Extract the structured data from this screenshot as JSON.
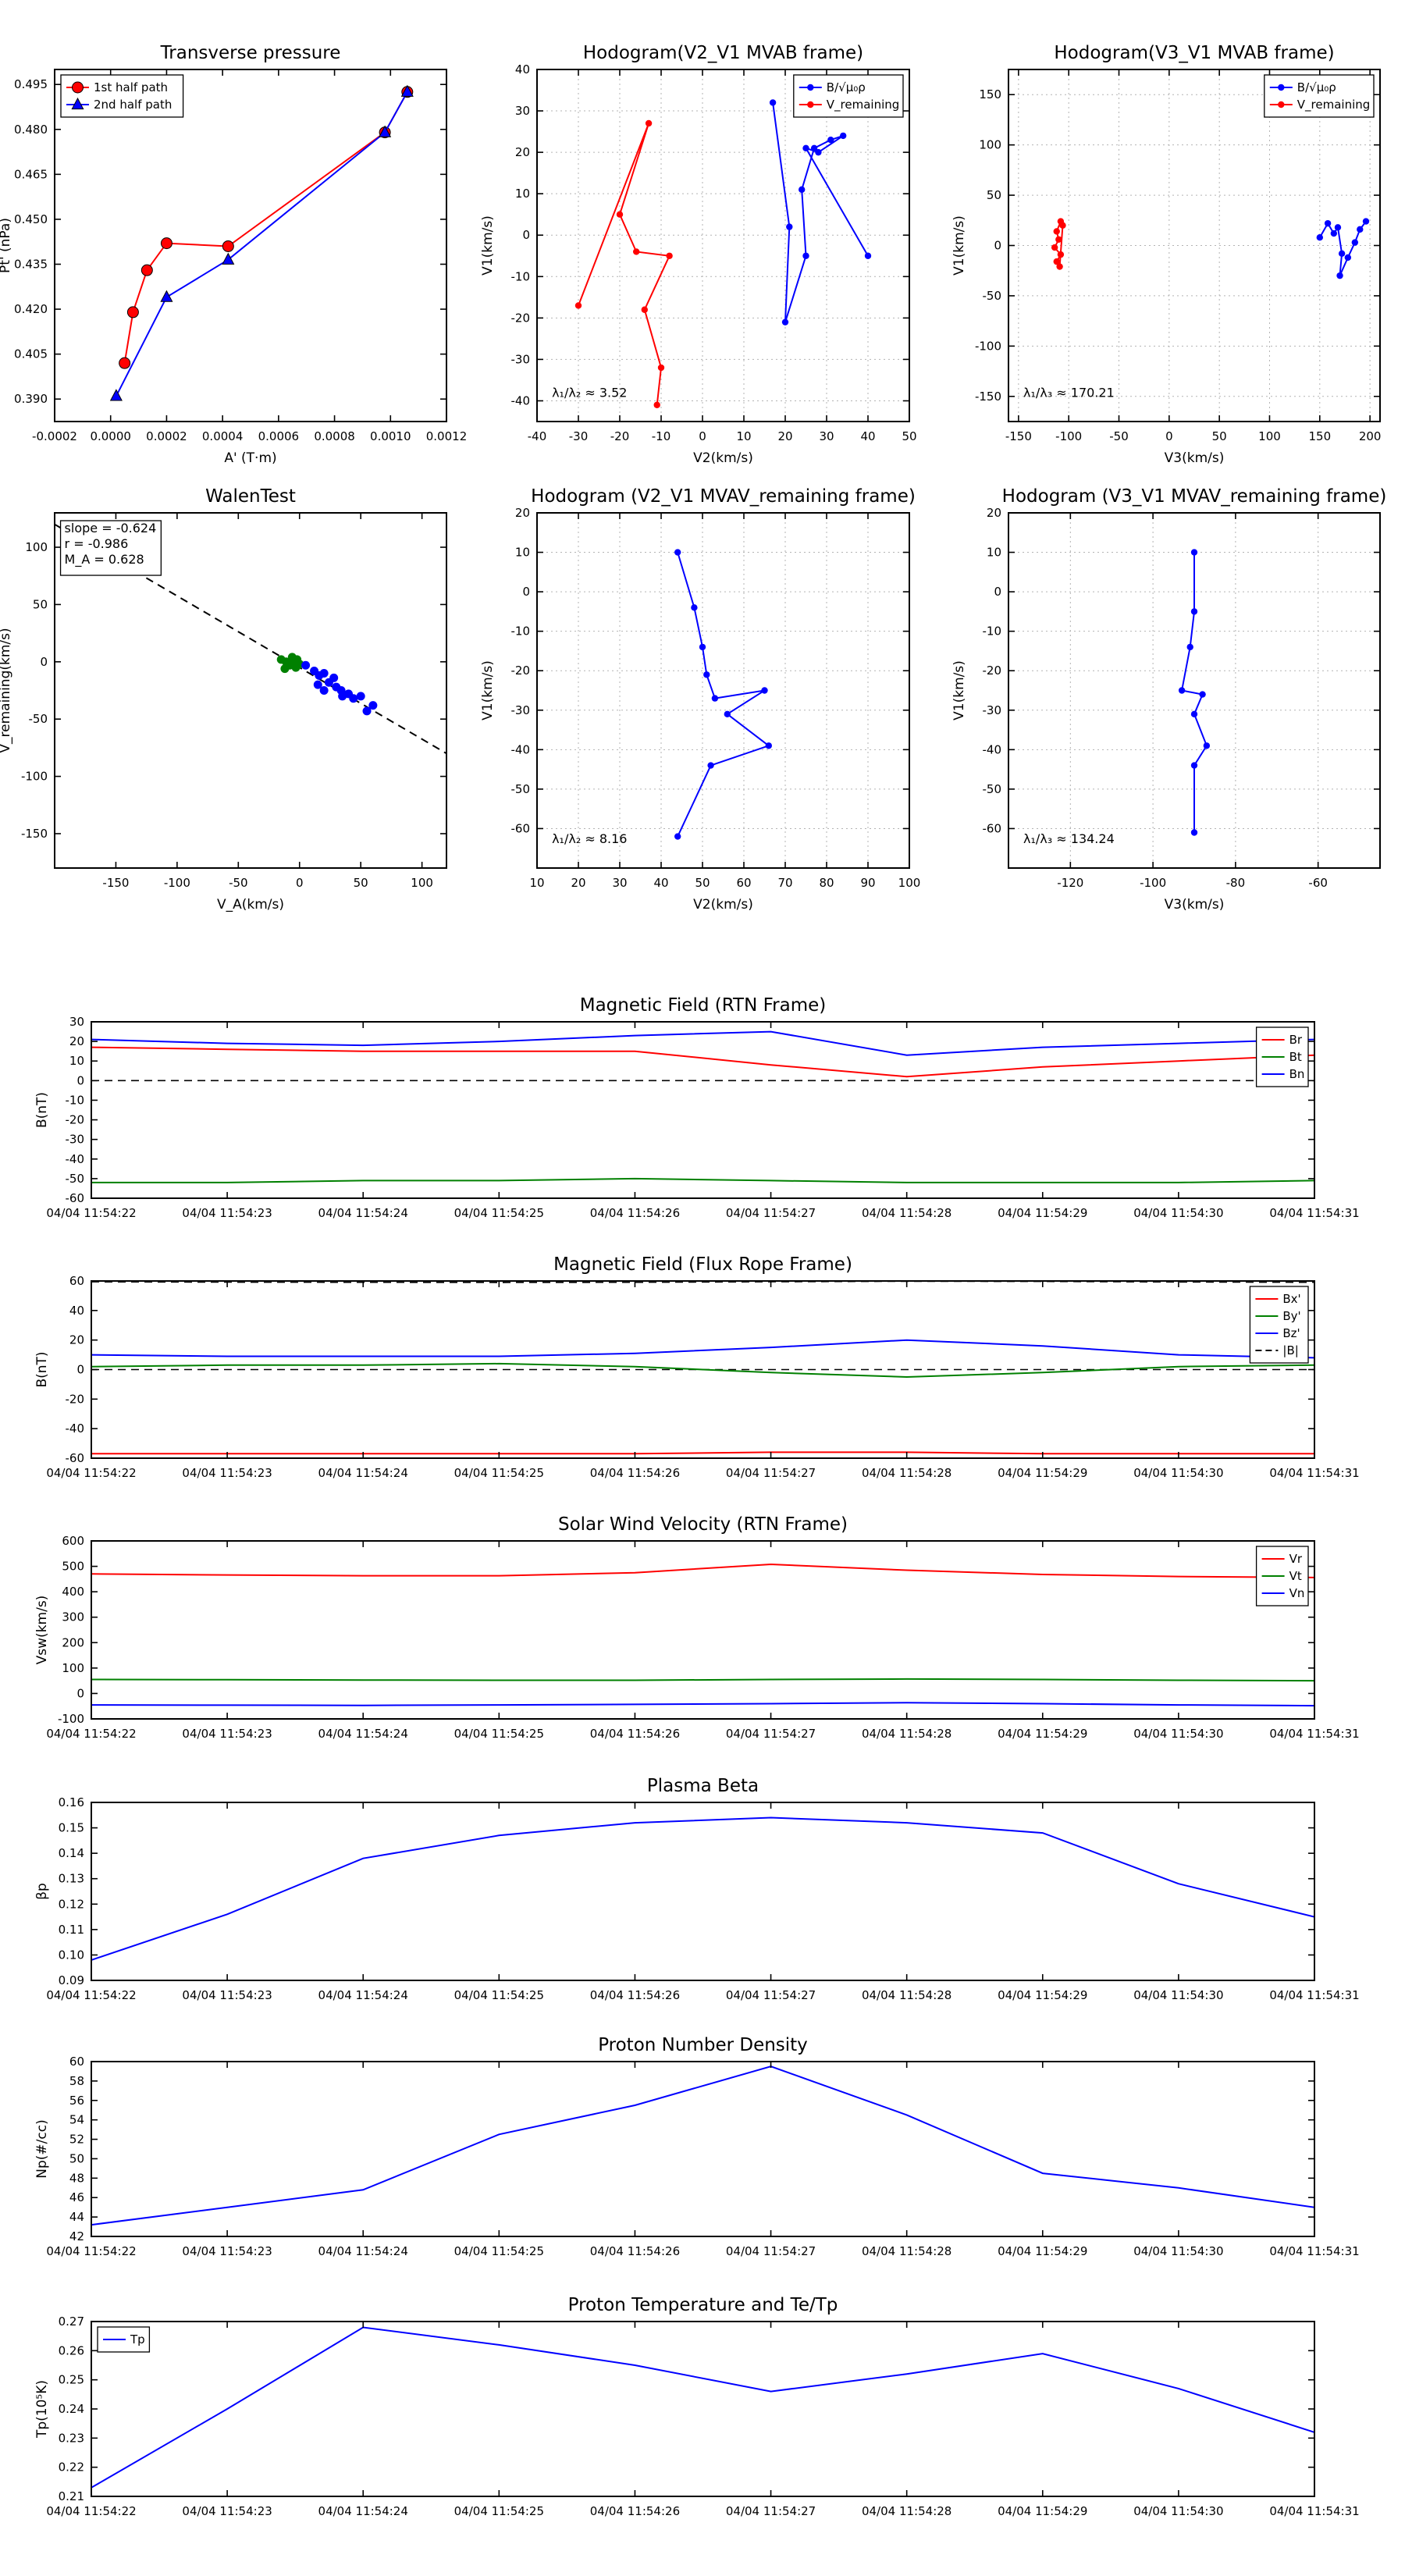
{
  "page": {
    "background": "#ffffff"
  },
  "colors": {
    "red": "#ff0000",
    "green": "#008000",
    "blue": "#0000ff",
    "black": "#000000",
    "grid": "#b3b3b3"
  },
  "time_axis": {
    "categories": [
      "04/04 11:54:22",
      "04/04 11:54:23",
      "04/04 11:54:24",
      "04/04 11:54:25",
      "04/04 11:54:26",
      "04/04 11:54:27",
      "04/04 11:54:28",
      "04/04 11:54:29",
      "04/04 11:54:30",
      "04/04 11:54:31"
    ]
  },
  "chart_data": [
    {
      "id": "transverse-pressure",
      "type": "line",
      "title": "Transverse pressure",
      "xlabel": "A' (T·m)",
      "ylabel": "Pt' (nPa)",
      "xlim": [
        -0.0002,
        0.0012
      ],
      "ylim": [
        0.3825,
        0.5
      ],
      "xticks": [
        -0.0002,
        0,
        0.0002,
        0.0004,
        0.0006,
        0.0008,
        0.001,
        0.0012
      ],
      "xtick_labels": [
        "-0.0002",
        "0.0000",
        "0.0002",
        "0.0004",
        "0.0006",
        "0.0008",
        "0.0010",
        "0.0012"
      ],
      "yticks": [
        0.39,
        0.405,
        0.42,
        0.435,
        0.45,
        0.465,
        0.48,
        0.495
      ],
      "ytick_labels": [
        "0.390",
        "0.405",
        "0.420",
        "0.435",
        "0.450",
        "0.465",
        "0.480",
        "0.495"
      ],
      "grid": false,
      "legend": {
        "pos": "tl"
      },
      "series": [
        {
          "name": "1st half path",
          "color": "#ff0000",
          "marker": "circle",
          "points": [
            [
              5e-05,
              0.402
            ],
            [
              8e-05,
              0.419
            ],
            [
              0.00013,
              0.433
            ],
            [
              0.0002,
              0.442
            ],
            [
              0.00042,
              0.441
            ],
            [
              0.00098,
              0.479
            ],
            [
              0.00106,
              0.4925
            ]
          ]
        },
        {
          "name": "2nd half path",
          "color": "#0000ff",
          "marker": "triangle",
          "points": [
            [
              2e-05,
              0.391
            ],
            [
              0.0002,
              0.424
            ],
            [
              0.00042,
              0.4365
            ],
            [
              0.00098,
              0.479
            ],
            [
              0.00106,
              0.4925
            ]
          ]
        }
      ]
    },
    {
      "id": "hodogram-v2v1-mvab",
      "type": "line",
      "title": "Hodogram(V2_V1 MVAB frame)",
      "xlabel": "V2(km/s)",
      "ylabel": "V1(km/s)",
      "xlim": [
        -40,
        50
      ],
      "ylim": [
        -45,
        40
      ],
      "xticks": [
        -40,
        -30,
        -20,
        -10,
        0,
        10,
        20,
        30,
        40,
        50
      ],
      "yticks": [
        -40,
        -30,
        -20,
        -10,
        0,
        10,
        20,
        30,
        40
      ],
      "grid": true,
      "legend": {
        "pos": "tr"
      },
      "annotations": [
        {
          "text": "λ₁/λ₂ ≈ 3.52",
          "ax": 0.04,
          "ay": 0.93
        }
      ],
      "series": [
        {
          "name": "B/√μ₀ρ",
          "color": "#0000ff",
          "marker": "dot",
          "points": [
            [
              17,
              32
            ],
            [
              21,
              2
            ],
            [
              20,
              -21
            ],
            [
              25,
              -5
            ],
            [
              24,
              11
            ],
            [
              27,
              21
            ],
            [
              31,
              23
            ],
            [
              34,
              24
            ],
            [
              28,
              20
            ],
            [
              25,
              21
            ],
            [
              40,
              -5
            ]
          ]
        },
        {
          "name": "V_remaining",
          "color": "#ff0000",
          "marker": "dot",
          "points": [
            [
              -30,
              -17
            ],
            [
              -13,
              27
            ],
            [
              -20,
              5
            ],
            [
              -16,
              -4
            ],
            [
              -8,
              -5
            ],
            [
              -14,
              -18
            ],
            [
              -10,
              -32
            ],
            [
              -11,
              -41
            ]
          ]
        }
      ]
    },
    {
      "id": "hodogram-v3v1-mvab",
      "type": "line",
      "title": "Hodogram(V3_V1 MVAB frame)",
      "xlabel": "V3(km/s)",
      "ylabel": "V1(km/s)",
      "xlim": [
        -160,
        210
      ],
      "ylim": [
        -175,
        175
      ],
      "xticks": [
        -150,
        -100,
        -50,
        0,
        50,
        100,
        150,
        200
      ],
      "yticks": [
        -150,
        -100,
        -50,
        0,
        50,
        100,
        150
      ],
      "grid": true,
      "legend": {
        "pos": "tr"
      },
      "annotations": [
        {
          "text": "λ₁/λ₃ ≈ 170.21",
          "ax": 0.04,
          "ay": 0.93
        }
      ],
      "series": [
        {
          "name": "B/√μ₀ρ",
          "color": "#0000ff",
          "marker": "dot",
          "points": [
            [
              150,
              8
            ],
            [
              158,
              22
            ],
            [
              164,
              12
            ],
            [
              168,
              18
            ],
            [
              172,
              -8
            ],
            [
              170,
              -30
            ],
            [
              178,
              -12
            ],
            [
              185,
              3
            ],
            [
              190,
              16
            ],
            [
              196,
              24
            ]
          ]
        },
        {
          "name": "V_remaining",
          "color": "#ff0000",
          "marker": "dot",
          "points": [
            [
              -108,
              24
            ],
            [
              -112,
              14
            ],
            [
              -110,
              6
            ],
            [
              -114,
              -2
            ],
            [
              -108,
              -9
            ],
            [
              -112,
              -16
            ],
            [
              -109,
              -21
            ],
            [
              -106,
              20
            ]
          ]
        }
      ]
    },
    {
      "id": "walen-test",
      "type": "scatter",
      "title": "WalenTest",
      "xlabel": "V_A(km/s)",
      "ylabel": "V_remaining(km/s)",
      "xlim": [
        -200,
        120
      ],
      "ylim": [
        -180,
        130
      ],
      "xticks": [
        -150,
        -100,
        -50,
        0,
        50,
        100
      ],
      "yticks": [
        -150,
        -100,
        -50,
        0,
        50,
        100
      ],
      "grid": false,
      "annotations": [
        {
          "text": "slope = -0.624\nr = -0.986\nM_A = 0.628",
          "ax": 0.025,
          "ay": 0.055,
          "box": true
        }
      ],
      "series": [
        {
          "name": "walen-fit-line",
          "color": "#000000",
          "dash": true,
          "legend": false,
          "points": [
            [
              -200,
              120
            ],
            [
              120,
              -80
            ]
          ]
        },
        {
          "name": "first-half-points",
          "color": "#008000",
          "marker": "dot",
          "msize": 5.5,
          "line": false,
          "legend": false,
          "points": [
            [
              -15,
              2
            ],
            [
              -11,
              0
            ],
            [
              -8,
              -3
            ],
            [
              -5,
              1
            ],
            [
              -3,
              -5
            ],
            [
              0,
              -2
            ],
            [
              -12,
              -6
            ],
            [
              -6,
              4
            ],
            [
              -2,
              2
            ],
            [
              -9,
              -1
            ]
          ]
        },
        {
          "name": "second-half-points",
          "color": "#0000ff",
          "marker": "dot",
          "msize": 5.5,
          "line": false,
          "legend": false,
          "points": [
            [
              5,
              -3
            ],
            [
              12,
              -8
            ],
            [
              16,
              -12
            ],
            [
              20,
              -10
            ],
            [
              24,
              -18
            ],
            [
              30,
              -22
            ],
            [
              28,
              -14
            ],
            [
              34,
              -25
            ],
            [
              40,
              -28
            ],
            [
              44,
              -32
            ],
            [
              50,
              -30
            ],
            [
              55,
              -43
            ],
            [
              60,
              -38
            ],
            [
              35,
              -30
            ],
            [
              20,
              -25
            ],
            [
              15,
              -20
            ]
          ]
        },
        {
          "name": "reference-point",
          "color": "#ff0000",
          "marker": "square",
          "msize": 8,
          "line": false,
          "legend": false,
          "points": [
            [
              -185,
              108
            ]
          ]
        }
      ]
    },
    {
      "id": "hodogram-v2v1-mvav",
      "type": "line",
      "title": "Hodogram (V2_V1 MVAV_remaining frame)",
      "xlabel": "V2(km/s)",
      "ylabel": "V1(km/s)",
      "xlim": [
        10,
        100
      ],
      "ylim": [
        -70,
        20
      ],
      "xticks": [
        10,
        20,
        30,
        40,
        50,
        60,
        70,
        80,
        90,
        100
      ],
      "yticks": [
        -60,
        -50,
        -40,
        -30,
        -20,
        -10,
        0,
        10,
        20
      ],
      "grid": true,
      "annotations": [
        {
          "text": "λ₁/λ₂ ≈ 8.16",
          "ax": 0.04,
          "ay": 0.93
        }
      ],
      "series": [
        {
          "name": "V_remaining hodogram",
          "color": "#0000ff",
          "marker": "dot",
          "points": [
            [
              44,
              10
            ],
            [
              48,
              -4
            ],
            [
              50,
              -14
            ],
            [
              51,
              -21
            ],
            [
              53,
              -27
            ],
            [
              65,
              -25
            ],
            [
              56,
              -31
            ],
            [
              66,
              -39
            ],
            [
              52,
              -44
            ],
            [
              44,
              -62
            ]
          ]
        }
      ]
    },
    {
      "id": "hodogram-v3v1-mvav",
      "type": "line",
      "title": "Hodogram (V3_V1 MVAV_remaining frame)",
      "xlabel": "V3(km/s)",
      "ylabel": "V1(km/s)",
      "xlim": [
        -135,
        -45
      ],
      "ylim": [
        -70,
        20
      ],
      "xticks": [
        -120,
        -100,
        -80,
        -60
      ],
      "yticks": [
        -60,
        -50,
        -40,
        -30,
        -20,
        -10,
        0,
        10,
        20
      ],
      "grid": true,
      "annotations": [
        {
          "text": "λ₁/λ₃ ≈ 134.24",
          "ax": 0.04,
          "ay": 0.93
        }
      ],
      "series": [
        {
          "name": "V_remaining hodogram",
          "color": "#0000ff",
          "marker": "dot",
          "points": [
            [
              -90,
              10
            ],
            [
              -90,
              -5
            ],
            [
              -91,
              -14
            ],
            [
              -93,
              -25
            ],
            [
              -88,
              -26
            ],
            [
              -90,
              -31
            ],
            [
              -87,
              -39
            ],
            [
              -90,
              -44
            ],
            [
              -90,
              -61
            ]
          ]
        }
      ]
    },
    {
      "id": "b-rtn",
      "type": "line",
      "title": "Magnetic Field (RTN Frame)",
      "ylabel": "B(nT)",
      "use_time_axis": true,
      "ylim": [
        -60,
        30
      ],
      "yticks": [
        -60,
        -50,
        -40,
        -30,
        -20,
        -10,
        0,
        10,
        20,
        30
      ],
      "zero_line": true,
      "legend": {
        "pos": "tr"
      },
      "series": [
        {
          "name": "Br",
          "color": "#ff0000",
          "values": [
            17,
            16,
            15,
            15,
            15,
            8,
            2,
            7,
            10,
            13
          ]
        },
        {
          "name": "Bt",
          "color": "#008000",
          "values": [
            -52,
            -52,
            -51,
            -51,
            -50,
            -51,
            -52,
            -52,
            -52,
            -51
          ]
        },
        {
          "name": "Bn",
          "color": "#0000ff",
          "values": [
            21,
            19,
            18,
            20,
            23,
            25,
            13,
            17,
            19,
            21
          ]
        }
      ]
    },
    {
      "id": "b-fluxrope",
      "type": "line",
      "title": "Magnetic Field (Flux Rope Frame)",
      "ylabel": "B(nT)",
      "use_time_axis": true,
      "ylim": [
        -60,
        60
      ],
      "yticks": [
        -60,
        -40,
        -20,
        0,
        20,
        40,
        60
      ],
      "zero_line": true,
      "legend": {
        "pos": "tr"
      },
      "series": [
        {
          "name": "Bx'",
          "color": "#ff0000",
          "values": [
            -57,
            -57,
            -57,
            -57,
            -57,
            -56,
            -56,
            -57,
            -57,
            -57
          ]
        },
        {
          "name": "By'",
          "color": "#008000",
          "values": [
            2,
            3,
            3,
            4,
            2,
            -2,
            -5,
            -2,
            2,
            3
          ]
        },
        {
          "name": "Bz'",
          "color": "#0000ff",
          "values": [
            10,
            9,
            9,
            9,
            11,
            15,
            20,
            16,
            10,
            8
          ]
        },
        {
          "name": "|B|",
          "color": "#000000",
          "dash": true,
          "values": [
            59.5,
            59.3,
            59.2,
            59.1,
            59.2,
            59.6,
            59.9,
            59.8,
            59.4,
            59.2
          ]
        }
      ]
    },
    {
      "id": "vsw-rtn",
      "type": "line",
      "title": "Solar Wind Velocity (RTN Frame)",
      "ylabel": "Vsw(km/s)",
      "use_time_axis": true,
      "ylim": [
        -100,
        600
      ],
      "yticks": [
        -100,
        0,
        100,
        200,
        300,
        400,
        500,
        600
      ],
      "legend": {
        "pos": "tr"
      },
      "series": [
        {
          "name": "Vr",
          "color": "#ff0000",
          "values": [
            470,
            466,
            463,
            463,
            475,
            508,
            485,
            468,
            460,
            456
          ]
        },
        {
          "name": "Vt",
          "color": "#008000",
          "values": [
            55,
            54,
            53,
            52,
            52,
            55,
            57,
            55,
            52,
            50
          ]
        },
        {
          "name": "Vn",
          "color": "#0000ff",
          "values": [
            -45,
            -46,
            -47,
            -45,
            -43,
            -40,
            -36,
            -40,
            -45,
            -48
          ]
        }
      ]
    },
    {
      "id": "plasma-beta",
      "type": "line",
      "title": "Plasma Beta",
      "ylabel": "βp",
      "use_time_axis": true,
      "ylim": [
        0.09,
        0.16
      ],
      "yticks": [
        0.09,
        0.1,
        0.11,
        0.12,
        0.13,
        0.14,
        0.15,
        0.16
      ],
      "ytick_labels": [
        "0.09",
        "0.10",
        "0.11",
        "0.12",
        "0.13",
        "0.14",
        "0.15",
        "0.16"
      ],
      "series": [
        {
          "name": "plasma-beta",
          "color": "#0000ff",
          "values": [
            0.098,
            0.116,
            0.138,
            0.147,
            0.152,
            0.154,
            0.152,
            0.148,
            0.128,
            0.115
          ]
        }
      ]
    },
    {
      "id": "proton-density",
      "type": "line",
      "title": "Proton Number Density",
      "ylabel": "Np(#/cc)",
      "use_time_axis": true,
      "ylim": [
        42,
        60
      ],
      "yticks": [
        42,
        44,
        46,
        48,
        50,
        52,
        54,
        56,
        58,
        60
      ],
      "series": [
        {
          "name": "Np",
          "color": "#0000ff",
          "values": [
            43.2,
            45,
            46.8,
            52.5,
            55.5,
            59.5,
            54.5,
            48.5,
            47,
            45
          ]
        }
      ]
    },
    {
      "id": "proton-temp",
      "type": "line",
      "title": "Proton Temperature and Te/Tp",
      "ylabel": "Tp(10⁵K)",
      "use_time_axis": true,
      "ylim": [
        0.21,
        0.27
      ],
      "yticks": [
        0.21,
        0.22,
        0.23,
        0.24,
        0.25,
        0.26,
        0.27
      ],
      "ytick_labels": [
        "0.21",
        "0.22",
        "0.23",
        "0.24",
        "0.25",
        "0.26",
        "0.27"
      ],
      "legend": {
        "pos": "tl"
      },
      "series": [
        {
          "name": "Tp",
          "color": "#0000ff",
          "values": [
            0.213,
            0.24,
            0.268,
            0.262,
            0.255,
            0.246,
            0.252,
            0.259,
            0.247,
            0.232
          ]
        }
      ]
    }
  ]
}
